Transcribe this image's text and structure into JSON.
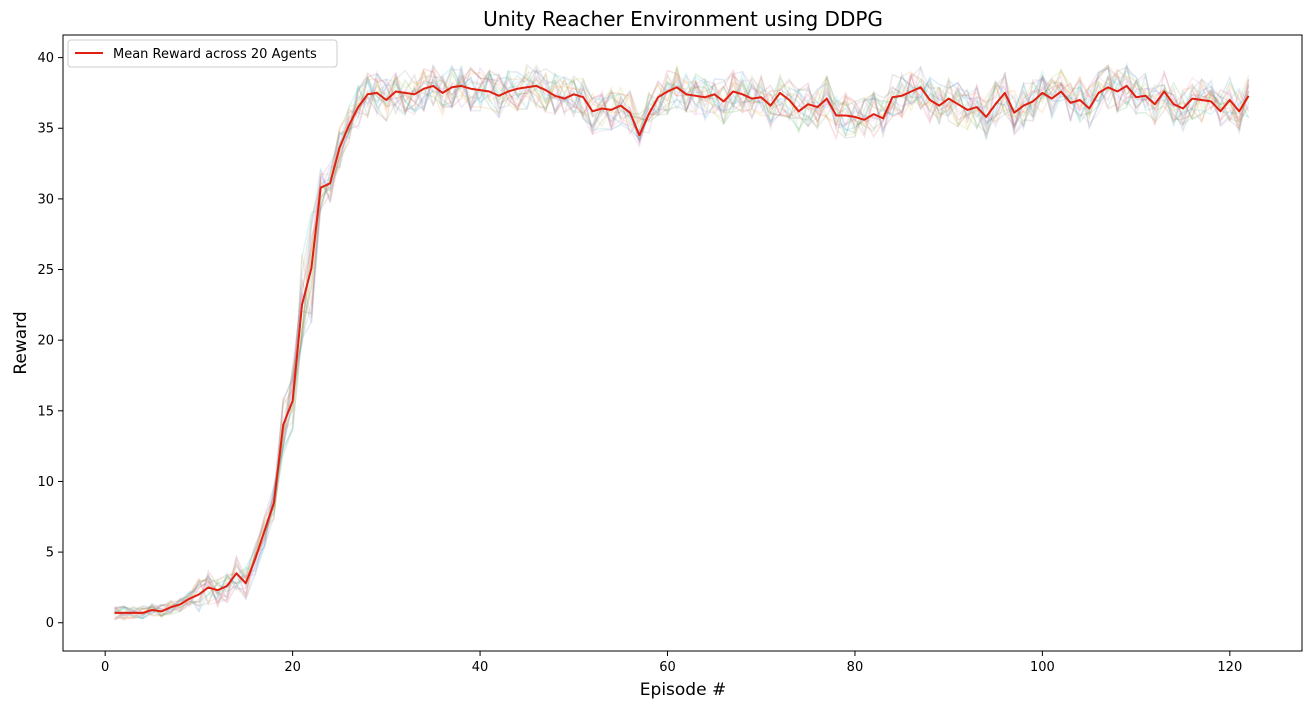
{
  "chart_data": {
    "type": "line",
    "title": "Unity Reacher Environment using DDPG",
    "xlabel": "Episode #",
    "ylabel": "Reward",
    "xlim": [
      -4.5,
      127.7
    ],
    "ylim": [
      -2.0,
      41.6
    ],
    "xticks": [
      0,
      20,
      40,
      60,
      80,
      100,
      120
    ],
    "yticks": [
      0,
      5,
      10,
      15,
      20,
      25,
      30,
      35,
      40
    ],
    "grid": false,
    "legend_position": "top-left",
    "series": [
      {
        "name": "Mean Reward across 20 Agents",
        "color": "#e02010",
        "x": [
          1,
          2,
          3,
          4,
          5,
          6,
          7,
          8,
          9,
          10,
          11,
          12,
          13,
          14,
          15,
          16,
          17,
          18,
          19,
          20,
          21,
          22,
          23,
          24,
          25,
          26,
          27,
          28,
          29,
          30,
          31,
          32,
          33,
          34,
          35,
          36,
          37,
          38,
          39,
          40,
          41,
          42,
          43,
          44,
          45,
          46,
          47,
          48,
          49,
          50,
          51,
          52,
          53,
          54,
          55,
          56,
          57,
          58,
          59,
          60,
          61,
          62,
          63,
          64,
          65,
          66,
          67,
          68,
          69,
          70,
          71,
          72,
          73,
          74,
          75,
          76,
          77,
          78,
          79,
          80,
          81,
          82,
          83,
          84,
          85,
          86,
          87,
          88,
          89,
          90,
          91,
          92,
          93,
          94,
          95,
          96,
          97,
          98,
          99,
          100,
          101,
          102,
          103,
          104,
          105,
          106,
          107,
          108,
          109,
          110,
          111,
          112,
          113,
          114,
          115,
          116,
          117,
          118,
          119,
          120,
          121,
          122
        ],
        "values": [
          0.7,
          0.7,
          0.7,
          0.7,
          0.9,
          0.8,
          1.1,
          1.3,
          1.7,
          2.0,
          2.5,
          2.3,
          2.6,
          3.5,
          2.8,
          4.5,
          6.5,
          8.5,
          14.0,
          15.7,
          22.5,
          25.1,
          30.8,
          31.1,
          33.6,
          35.2,
          36.5,
          37.4,
          37.5,
          37.0,
          37.6,
          37.5,
          37.4,
          37.8,
          38.0,
          37.5,
          37.9,
          38.0,
          37.8,
          37.7,
          37.6,
          37.3,
          37.6,
          37.8,
          37.9,
          38.0,
          37.7,
          37.3,
          37.1,
          37.4,
          37.2,
          36.2,
          36.4,
          36.3,
          36.6,
          36.1,
          34.5,
          36.0,
          37.2,
          37.6,
          37.9,
          37.4,
          37.3,
          37.2,
          37.4,
          36.9,
          37.6,
          37.4,
          37.1,
          37.2,
          36.6,
          37.5,
          37.0,
          36.2,
          36.7,
          36.5,
          37.1,
          35.9,
          35.9,
          35.8,
          35.6,
          36.0,
          35.7,
          37.2,
          37.3,
          37.6,
          37.9,
          37.0,
          36.6,
          37.1,
          36.7,
          36.3,
          36.5,
          35.8,
          36.7,
          37.5,
          36.1,
          36.6,
          36.9,
          37.5,
          37.1,
          37.6,
          36.8,
          37.0,
          36.4,
          37.5,
          37.9,
          37.6,
          38.0,
          37.2,
          37.3,
          36.7,
          37.6,
          36.7,
          36.4,
          37.1,
          37.0,
          36.9,
          36.2,
          37.0,
          36.2,
          37.3
        ]
      }
    ],
    "faint_agent_series": {
      "count": 20,
      "colors": [
        "#1f77b4",
        "#ff7f0e",
        "#2ca02c",
        "#d62728",
        "#9467bd",
        "#8c564b",
        "#e377c2",
        "#7f7f7f",
        "#bcbd22",
        "#17becf"
      ]
    }
  }
}
